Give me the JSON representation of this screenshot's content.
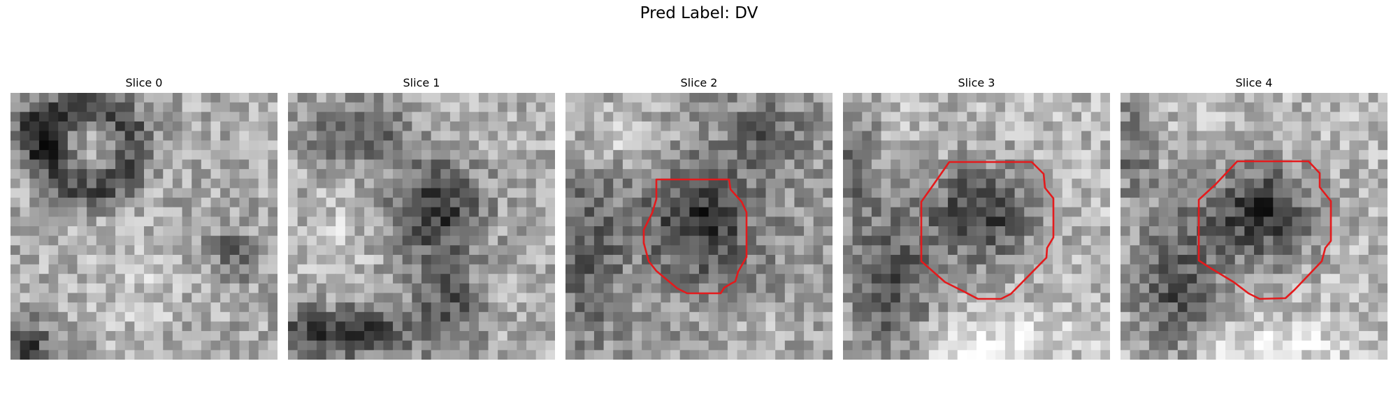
{
  "figure": {
    "title": "Pred Label: DV"
  },
  "panels": [
    {
      "title": "Slice 0",
      "has_contour": false
    },
    {
      "title": "Slice 1",
      "has_contour": false
    },
    {
      "title": "Slice 2",
      "has_contour": true
    },
    {
      "title": "Slice 3",
      "has_contour": true
    },
    {
      "title": "Slice 4",
      "has_contour": true
    }
  ],
  "style": {
    "contour_color": "#e41a1c",
    "colormap": "grayscale"
  }
}
